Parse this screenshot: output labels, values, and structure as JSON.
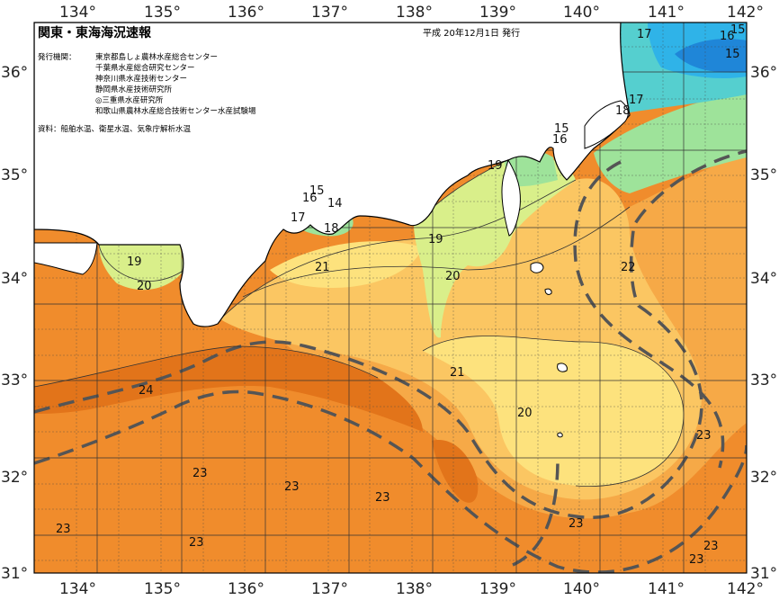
{
  "title": "関東・東海海況速報",
  "issue_date": "平成 20年12月1日 発行",
  "publisher_label": "発行機関：",
  "publishers": [
    "東京都島しょ農林水産総合センター",
    "千葉県水産総合研究センター",
    "神奈川県水産技術センター",
    "静岡県水産技術研究所",
    "◎三重県水産研究所",
    "和歌山県農林水産総合技術センター水産試験場"
  ],
  "source_line": "資料：船舶水温、衛星水温、気象庁解析水温",
  "lon_ticks": [
    "134°",
    "135°",
    "136°",
    "137°",
    "138°",
    "139°",
    "140°",
    "141°",
    "142°"
  ],
  "lat_ticks": [
    "36°",
    "35°",
    "34°",
    "33°",
    "32°",
    "31°"
  ],
  "contour_labels": [
    {
      "text": "17"
    },
    {
      "text": "16"
    },
    {
      "text": "15"
    },
    {
      "text": "15"
    },
    {
      "text": "17"
    },
    {
      "text": "18"
    },
    {
      "text": "15"
    },
    {
      "text": "16"
    },
    {
      "text": "19"
    },
    {
      "text": "16"
    },
    {
      "text": "15"
    },
    {
      "text": "14"
    },
    {
      "text": "17"
    },
    {
      "text": "18"
    },
    {
      "text": "19"
    },
    {
      "text": "21"
    },
    {
      "text": "20"
    },
    {
      "text": "19"
    },
    {
      "text": "20"
    },
    {
      "text": "22"
    },
    {
      "text": "21"
    },
    {
      "text": "20"
    },
    {
      "text": "24"
    },
    {
      "text": "23"
    },
    {
      "text": "23"
    },
    {
      "text": "23"
    },
    {
      "text": "23"
    },
    {
      "text": "23"
    },
    {
      "text": "23"
    },
    {
      "text": "23"
    },
    {
      "text": "23"
    }
  ],
  "colors": {
    "warm_24": "#e2741a",
    "warm_23": "#f08c2c",
    "warm_22": "#f6a947",
    "warm_21": "#fbc662",
    "warm_20": "#fde27d",
    "mid_19": "#d9ef8a",
    "cool_18": "#9ee39a",
    "cool_17": "#55cfcf",
    "cool_16": "#2fb3e8",
    "cool_15": "#1f86d8",
    "land": "#ffffff",
    "kuroshio_axis": "#555555"
  }
}
